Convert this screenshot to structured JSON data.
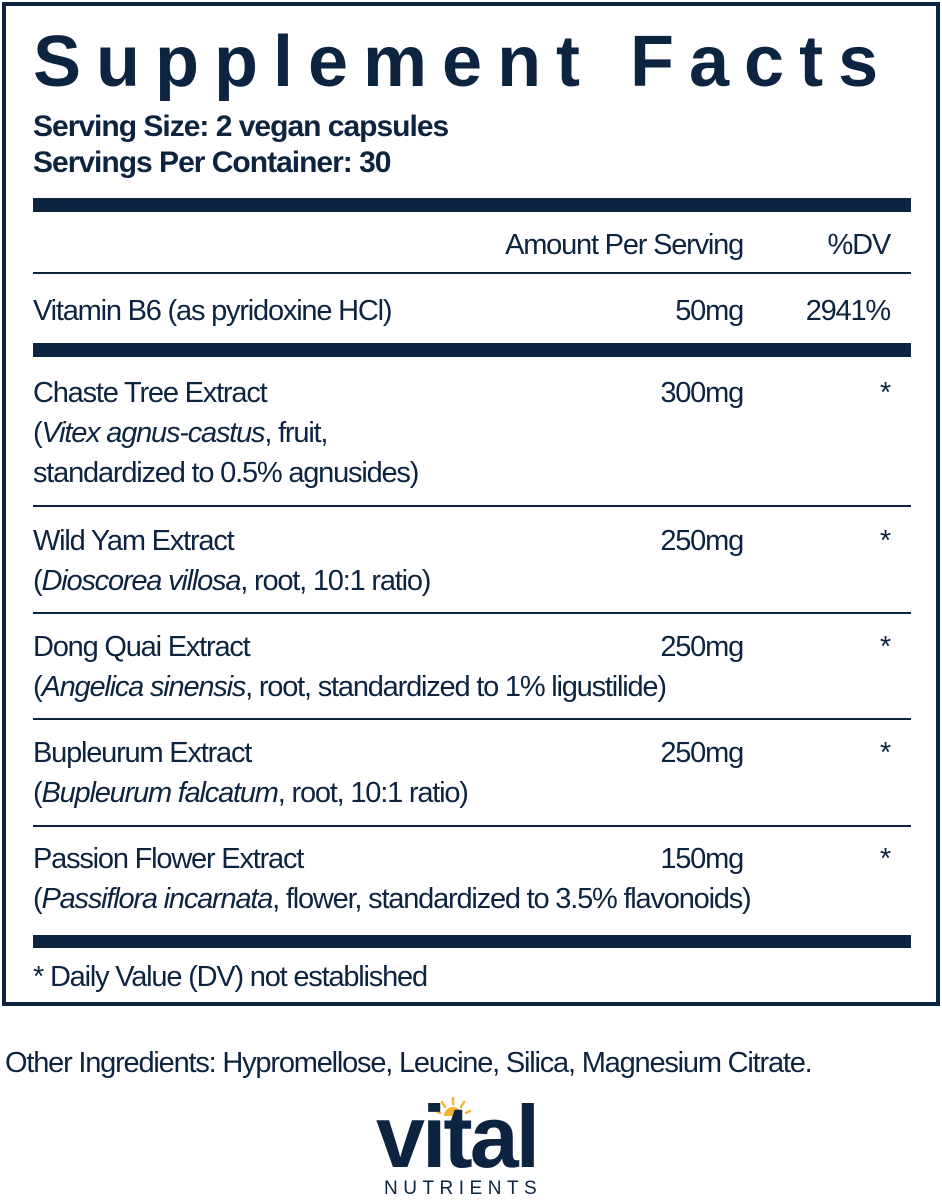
{
  "title": "Supplement Facts",
  "serving_size": "Serving Size: 2 vegan capsules",
  "servings_per_container": "Servings Per Container: 30",
  "header": {
    "amount": "Amount Per Serving",
    "dv": "%DV"
  },
  "vitamin": {
    "name": "Vitamin B6 (as pyridoxine HCl)",
    "amount": "50mg",
    "dv": "2941%"
  },
  "ingredients": [
    {
      "name": "Chaste Tree Extract",
      "amount": "300mg",
      "dv": "*",
      "l1": {
        "pre": "(",
        "italic": "Vitex agnus-castus",
        "post": ", fruit,"
      },
      "l2": "standardized to 0.5% agnusides)"
    },
    {
      "name": "Wild Yam Extract",
      "amount": "250mg",
      "dv": "*",
      "l1": {
        "pre": "(",
        "italic": "Dioscorea villosa",
        "post": ", root, 10:1 ratio)"
      }
    },
    {
      "name": "Dong Quai Extract",
      "amount": "250mg",
      "dv": "*",
      "l1": {
        "pre": "(",
        "italic": "Angelica sinensis",
        "post": ", root, standardized to 1% ligustilide)"
      }
    },
    {
      "name": "Bupleurum Extract",
      "amount": "250mg",
      "dv": "*",
      "l1": {
        "pre": "(",
        "italic": "Bupleurum falcatum",
        "post": ", root, 10:1 ratio)"
      }
    },
    {
      "name": "Passion Flower Extract",
      "amount": "150mg",
      "dv": "*",
      "l1": {
        "pre": "(",
        "italic": "Passiflora incarnata",
        "post": ", flower, standardized to 3.5% flavonoids)"
      }
    }
  ],
  "footnote": "* Daily Value (DV) not established",
  "other_ingredients": "Other Ingredients: Hypromellose, Leucine, Silica, Magnesium Citrate.",
  "logo": {
    "word": "vital",
    "sub": "NUTRIENTS",
    "text_color": "#0d2440",
    "sun_color": "#f2b534"
  },
  "colors": {
    "ink": "#0d2440"
  }
}
